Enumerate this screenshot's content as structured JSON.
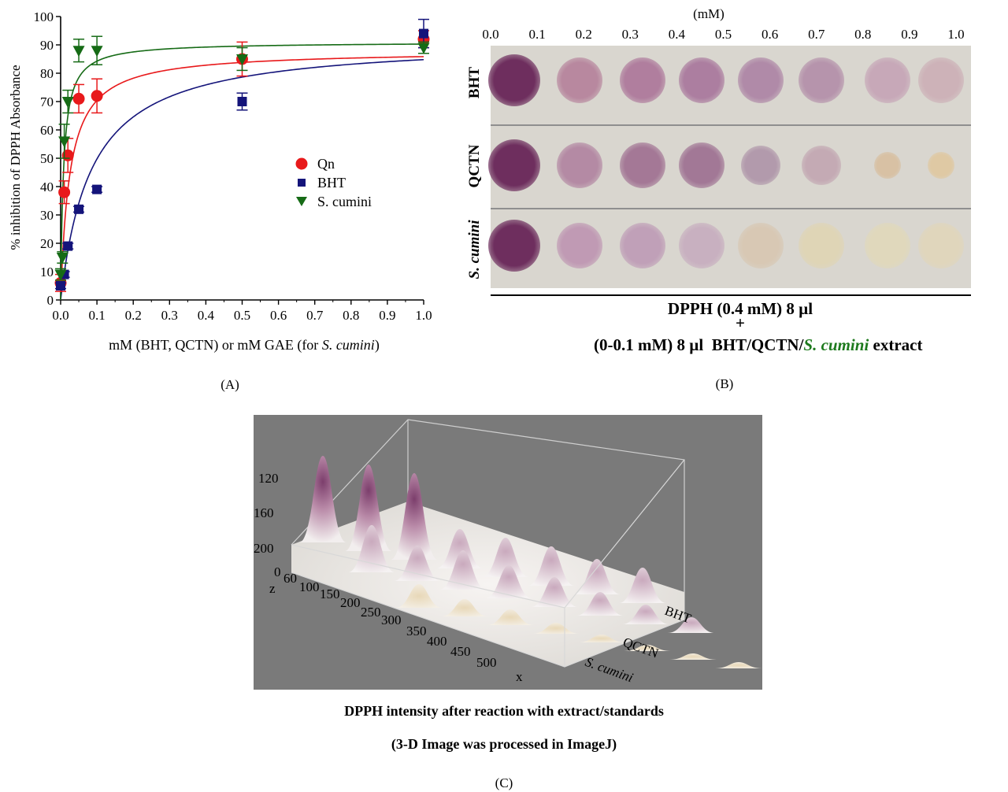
{
  "panel_labels": {
    "a": "(A)",
    "b": "(B)",
    "c": "(C)"
  },
  "chart_data": [
    {
      "type": "scatter",
      "panel": "A",
      "ylabel": "% inhibition of DPPH Absorbance",
      "xlabel_prefix": "mM (BHT, QCTN) or mM GAE (for ",
      "xlabel_italic": "S. cumini",
      "xlabel_suffix": ")",
      "xlim": [
        0,
        1.0
      ],
      "ylim": [
        0,
        100
      ],
      "xticks": [
        "0.0",
        "0.1",
        "0.2",
        "0.3",
        "0.4",
        "0.5",
        "0.6",
        "0.7",
        "0.8",
        "0.9",
        "1.0"
      ],
      "yticks": [
        "0",
        "10",
        "20",
        "30",
        "40",
        "50",
        "60",
        "70",
        "80",
        "90",
        "100"
      ],
      "legend_position": "center-right",
      "series": [
        {
          "name": "Qn",
          "marker": "circle",
          "color": "#e8191b",
          "x": [
            0.0,
            0.01,
            0.02,
            0.05,
            0.1,
            0.5,
            1.0
          ],
          "y": [
            6,
            38,
            51,
            71,
            72,
            85,
            92
          ],
          "err": [
            3,
            4,
            6,
            5,
            6,
            6,
            3
          ],
          "fit": {
            "max": 88,
            "k": 0.025
          }
        },
        {
          "name": "BHT",
          "marker": "square",
          "color": "#14147a",
          "x": [
            0.0,
            0.01,
            0.02,
            0.05,
            0.1,
            0.5,
            1.0
          ],
          "y": [
            5,
            9,
            19,
            32,
            39,
            70,
            94
          ],
          "err": [
            1,
            1,
            1,
            1,
            1,
            3,
            5
          ],
          "fit": {
            "max": 92,
            "k": 0.085
          }
        },
        {
          "name": "S. cumini",
          "marker": "triangle-down",
          "color": "#166b16",
          "x": [
            0.0,
            0.005,
            0.01,
            0.02,
            0.05,
            0.1,
            0.5,
            1.0
          ],
          "y": [
            9,
            15,
            56,
            70,
            88,
            88,
            85,
            89
          ],
          "err": [
            2,
            2,
            6,
            4,
            4,
            5,
            4,
            2
          ],
          "fit": {
            "max": 91,
            "k": 0.008
          }
        }
      ]
    },
    {
      "type": "image-plate",
      "panel": "B",
      "unit": "(mM)",
      "concentration_labels": [
        "0.0",
        "0.1",
        "0.2",
        "0.3",
        "0.4",
        "0.5",
        "0.6",
        "0.7",
        "0.8",
        "0.9",
        "1.0"
      ],
      "rows": [
        {
          "label": "BHT",
          "spot_colors": [
            "#6e2e5e",
            "#b8889f",
            "#b07e9e",
            "#ac7ea0",
            "#b08aa8",
            "#b694ac",
            "#c7a8b8",
            "#cdb2b8"
          ]
        },
        {
          "label": "QCTN",
          "spot_colors": [
            "#6e2e5e",
            "#b48aa4",
            "#a47896",
            "#a27896",
            "#b29aac",
            "#c4aab4",
            "#d8c1a4",
            "#dfc9a4"
          ]
        },
        {
          "label": "S. cumini",
          "spot_colors": [
            "#6e2e5e",
            "#c09ab4",
            "#c0a0b8",
            "#c8b0c0",
            "#d8c8b4",
            "#dfd5b6",
            "#e0d8bc",
            "#e0d6bc"
          ]
        }
      ],
      "caption_line1": "DPPH (0.4 mM) 8 µl",
      "caption_plus": "+",
      "caption_line2_prefix": "(0-0.1 mM) 8 µl  BHT/QCTN/",
      "caption_line2_italic": "S. cumini",
      "caption_line2_suffix": " extract"
    },
    {
      "type": "surface-3d",
      "panel": "C",
      "z_ticks": [
        "120",
        "160",
        "200"
      ],
      "z_label": "z",
      "z_zero": "0",
      "x_ticks": [
        "60",
        "100",
        "150",
        "200",
        "250",
        "300",
        "350",
        "400",
        "450",
        "500"
      ],
      "x_label": "x",
      "row_labels": [
        "BHT",
        "QCTN",
        "S. cumini"
      ],
      "caption_line1": "DPPH intensity after reaction with extract/standards",
      "caption_line2": "(3-D Image was processed in ImageJ)"
    }
  ]
}
